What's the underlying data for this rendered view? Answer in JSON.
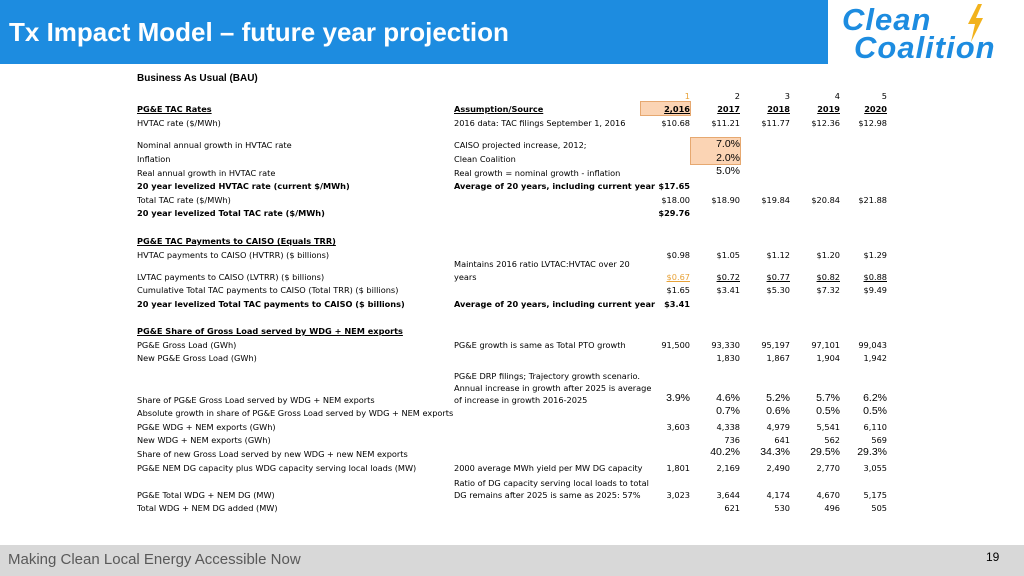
{
  "slide": {
    "title": "Tx Impact Model – future year projection",
    "logo": {
      "line1": "Clean",
      "line2": "Coalition"
    },
    "footer": "Making Clean Local Energy Accessible Now",
    "page_number": "19"
  },
  "sheet": {
    "section_title": "Business As Usual (BAU)",
    "year_index": [
      "1",
      "2",
      "3",
      "4",
      "5"
    ],
    "header": {
      "label": "PG&E TAC Rates",
      "source": "Assumption/Source",
      "years": [
        "2,016",
        "2017",
        "2018",
        "2019",
        "2020"
      ]
    },
    "r1": {
      "label": "HVTAC rate ($/MWh)",
      "source": "2016 data: TAC filings September 1, 2016",
      "values": [
        "$10.68",
        "$11.21",
        "$11.77",
        "$12.36",
        "$12.98"
      ]
    },
    "r2": {
      "label": "Nominal annual growth in HVTAC rate",
      "source": "CAISO projected increase, 2012;",
      "value": "7.0%"
    },
    "r3": {
      "label": "Inflation",
      "source": "Clean Coalition",
      "value": "2.0%"
    },
    "r4": {
      "label": "Real annual growth in HVTAC rate",
      "source": "Real growth = nominal growth - inflation",
      "value": "5.0%"
    },
    "r5": {
      "label": "20 year levelized HVTAC rate (current $/MWh)",
      "source": "Average of 20 years, including current year",
      "value": "$17.65"
    },
    "r6": {
      "label": "Total TAC rate ($/MWh)",
      "values": [
        "$18.00",
        "$18.90",
        "$19.84",
        "$20.84",
        "$21.88"
      ]
    },
    "r7": {
      "label": "20 year levelized Total TAC rate ($/MWh)",
      "value": "$29.76"
    },
    "s2": {
      "label": "PG&E TAC Payments to CAISO (Equals TRR)"
    },
    "r8": {
      "label": "HVTAC payments to CAISO (HVTRR) ($ billions)",
      "values": [
        "$0.98",
        "$1.05",
        "$1.12",
        "$1.20",
        "$1.29"
      ]
    },
    "r9": {
      "label": "LVTAC payments to CAISO (LVTRR) ($ billions)",
      "source_1": "Maintains 2016 ratio LVTAC:HVTAC over 20",
      "source_2": "years",
      "values": [
        "$0.67",
        "$0.72",
        "$0.77",
        "$0.82",
        "$0.88"
      ]
    },
    "r10": {
      "label": "Cumulative Total TAC payments to CAISO (Total TRR) ($ billions)",
      "values": [
        "$1.65",
        "$3.41",
        "$5.30",
        "$7.32",
        "$9.49"
      ]
    },
    "r11": {
      "label": "20 year levelized Total TAC payments to CAISO ($ billions)",
      "source": "Average of 20 years, including current year",
      "value": "$3.41"
    },
    "s3": {
      "label": "PG&E Share of Gross Load served by WDG + NEM exports"
    },
    "r12": {
      "label": "PG&E Gross Load (GWh)",
      "source": "PG&E growth is same as Total PTO  growth",
      "values": [
        "91,500",
        "93,330",
        "95,197",
        "97,101",
        "99,043"
      ]
    },
    "r13": {
      "label": "New PG&E Gross Load (GWh)",
      "values": [
        "1,830",
        "1,867",
        "1,904",
        "1,942"
      ]
    },
    "r14": {
      "label": "Share of PG&E Gross Load served by WDG + NEM exports",
      "source_1": "PG&E DRP filings; Trajectory growth scenario.",
      "source_2": "Annual increase in growth after 2025 is average",
      "source_3": "of increase in growth 2016-2025",
      "values": [
        "3.9%",
        "4.6%",
        "5.2%",
        "5.7%",
        "6.2%"
      ]
    },
    "r15": {
      "label": "Absolute growth in share of PG&E Gross Load served by WDG + NEM exports",
      "values": [
        "0.7%",
        "0.6%",
        "0.5%",
        "0.5%"
      ]
    },
    "r16": {
      "label": "PG&E WDG + NEM exports (GWh)",
      "values": [
        "3,603",
        "4,338",
        "4,979",
        "5,541",
        "6,110"
      ]
    },
    "r17": {
      "label": "New WDG + NEM exports (GWh)",
      "values": [
        "736",
        "641",
        "562",
        "569"
      ]
    },
    "r18": {
      "label": "Share of new Gross Load served by new WDG + new NEM exports",
      "values": [
        "40.2%",
        "34.3%",
        "29.5%",
        "29.3%"
      ]
    },
    "r19": {
      "label": "PG&E NEM DG capacity plus WDG capacity serving local loads (MW)",
      "source": "2000 average MWh yield per MW DG capacity",
      "values": [
        "1,801",
        "2,169",
        "2,490",
        "2,770",
        "3,055"
      ]
    },
    "r20": {
      "label": "PG&E Total WDG + NEM DG (MW)",
      "source_1": "Ratio of DG capacity serving local loads to total",
      "source_2": "DG remains after 2025 is same as 2025: 57%",
      "values": [
        "3,023",
        "3,644",
        "4,174",
        "4,670",
        "5,175"
      ]
    },
    "r21": {
      "label": "Total WDG + NEM DG added (MW)",
      "values": [
        "621",
        "530",
        "496",
        "505"
      ]
    }
  },
  "colors": {
    "title_bar": "#1d8ce0",
    "highlight_fill": "#fbd4b4",
    "highlight_text": "#e8a33a",
    "footer_bar": "#d8d8d8"
  }
}
